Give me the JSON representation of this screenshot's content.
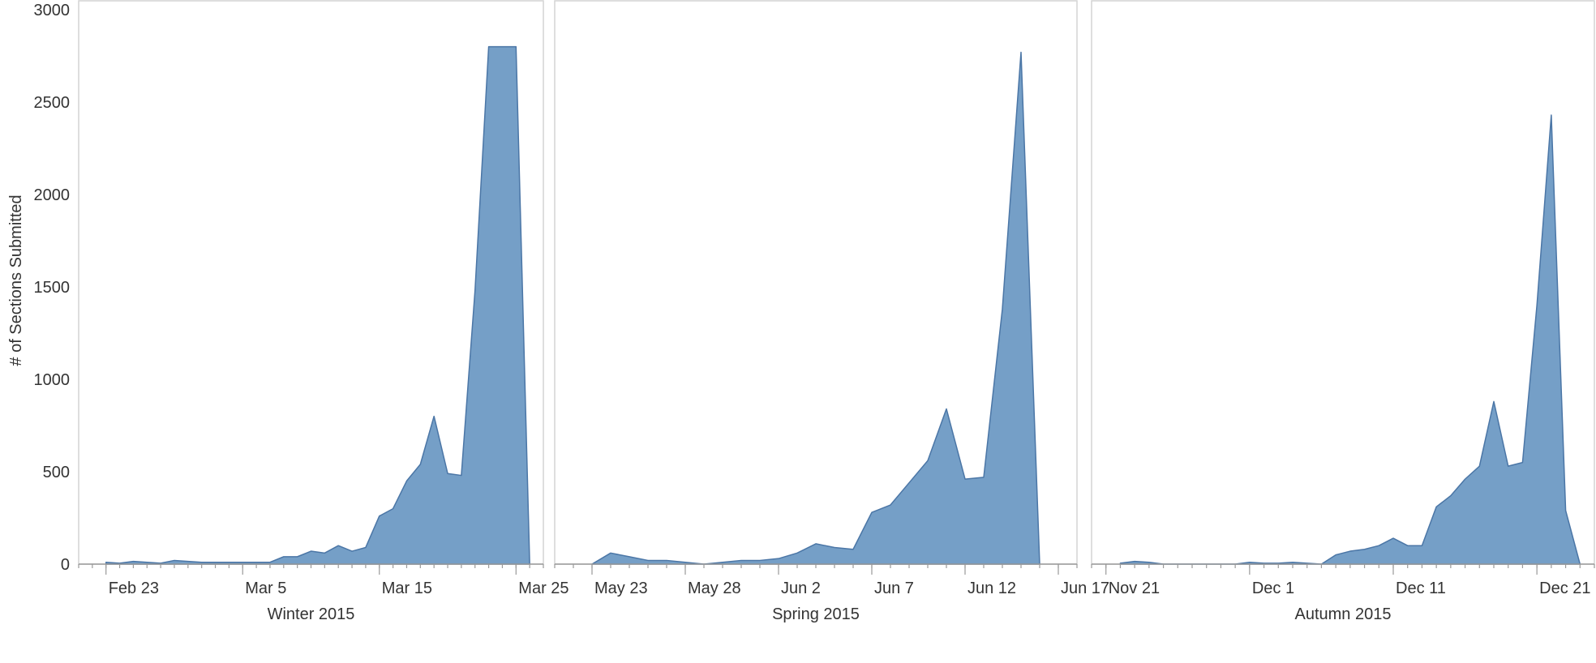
{
  "chart_data": {
    "type": "area",
    "ylabel": "# of Sections Submitted",
    "yticks": [
      0,
      500,
      1000,
      1500,
      2000,
      2500,
      3000
    ],
    "ylim": [
      0,
      3000
    ],
    "grid": false,
    "colors": {
      "fill": "#759fc7",
      "stroke": "#4b76a6",
      "frame": "#d4d4d4",
      "axis": "#9a9a9a"
    },
    "panels": [
      {
        "name": "Winter 2015",
        "date_range": [
          "2015-02-21",
          "2015-03-27"
        ],
        "ticks": [
          {
            "date": "2015-02-23",
            "label": "Feb 23"
          },
          {
            "date": "2015-03-05",
            "label": "Mar 5"
          },
          {
            "date": "2015-03-15",
            "label": "Mar 15"
          },
          {
            "date": "2015-03-25",
            "label": "Mar 25"
          }
        ],
        "x": [
          "2015-02-23",
          "2015-02-24",
          "2015-02-25",
          "2015-02-26",
          "2015-02-27",
          "2015-02-28",
          "2015-03-01",
          "2015-03-02",
          "2015-03-03",
          "2015-03-04",
          "2015-03-05",
          "2015-03-06",
          "2015-03-07",
          "2015-03-08",
          "2015-03-09",
          "2015-03-10",
          "2015-03-11",
          "2015-03-12",
          "2015-03-13",
          "2015-03-14",
          "2015-03-15",
          "2015-03-16",
          "2015-03-17",
          "2015-03-18",
          "2015-03-19",
          "2015-03-20",
          "2015-03-21",
          "2015-03-22",
          "2015-03-23",
          "2015-03-24",
          "2015-03-25",
          "2015-03-26"
        ],
        "values": [
          10,
          5,
          15,
          10,
          5,
          20,
          15,
          10,
          10,
          10,
          10,
          10,
          10,
          40,
          40,
          70,
          60,
          100,
          70,
          90,
          260,
          300,
          450,
          540,
          800,
          490,
          480,
          1480,
          2800,
          2800,
          2800,
          0
        ],
        "drop_at": "2015-03-25"
      },
      {
        "name": "Spring 2015",
        "date_range": [
          "2015-05-21",
          "2015-06-18"
        ],
        "ticks": [
          {
            "date": "2015-05-23",
            "label": "May 23"
          },
          {
            "date": "2015-05-28",
            "label": "May 28"
          },
          {
            "date": "2015-06-02",
            "label": "Jun 2"
          },
          {
            "date": "2015-06-07",
            "label": "Jun 7"
          },
          {
            "date": "2015-06-12",
            "label": "Jun 12"
          },
          {
            "date": "2015-06-17",
            "label": "Jun 17"
          }
        ],
        "x": [
          "2015-05-23",
          "2015-05-24",
          "2015-05-25",
          "2015-05-26",
          "2015-05-27",
          "2015-05-28",
          "2015-05-29",
          "2015-05-30",
          "2015-05-31",
          "2015-06-01",
          "2015-06-02",
          "2015-06-03",
          "2015-06-04",
          "2015-06-05",
          "2015-06-06",
          "2015-06-07",
          "2015-06-08",
          "2015-06-09",
          "2015-06-10",
          "2015-06-11",
          "2015-06-12",
          "2015-06-13",
          "2015-06-14",
          "2015-06-15",
          "2015-06-16"
        ],
        "values": [
          0,
          60,
          40,
          20,
          20,
          10,
          0,
          10,
          20,
          20,
          30,
          60,
          110,
          90,
          80,
          280,
          320,
          440,
          560,
          840,
          460,
          470,
          1380,
          2770,
          0
        ],
        "drop_at": "2015-06-16"
      },
      {
        "name": "Autumn 2015",
        "date_range": [
          "2015-11-20",
          "2015-12-25"
        ],
        "ticks": [
          {
            "date": "2015-11-21",
            "label": "Nov 21"
          },
          {
            "date": "2015-12-01",
            "label": "Dec 1"
          },
          {
            "date": "2015-12-11",
            "label": "Dec 11"
          },
          {
            "date": "2015-12-21",
            "label": "Dec 21"
          }
        ],
        "x": [
          "2015-11-22",
          "2015-11-23",
          "2015-11-24",
          "2015-11-25",
          "2015-11-26",
          "2015-11-27",
          "2015-11-28",
          "2015-11-29",
          "2015-11-30",
          "2015-12-01",
          "2015-12-02",
          "2015-12-03",
          "2015-12-04",
          "2015-12-05",
          "2015-12-06",
          "2015-12-07",
          "2015-12-08",
          "2015-12-09",
          "2015-12-10",
          "2015-12-11",
          "2015-12-12",
          "2015-12-13",
          "2015-12-14",
          "2015-12-15",
          "2015-12-16",
          "2015-12-17",
          "2015-12-18",
          "2015-12-19",
          "2015-12-20",
          "2015-12-21",
          "2015-12-22",
          "2015-12-23",
          "2015-12-24"
        ],
        "values": [
          5,
          15,
          10,
          0,
          0,
          0,
          0,
          0,
          0,
          10,
          5,
          5,
          10,
          5,
          0,
          50,
          70,
          80,
          100,
          140,
          100,
          100,
          310,
          370,
          460,
          530,
          880,
          530,
          550,
          1400,
          2430,
          290,
          0
        ],
        "drop_at": "2015-12-23"
      }
    ]
  }
}
